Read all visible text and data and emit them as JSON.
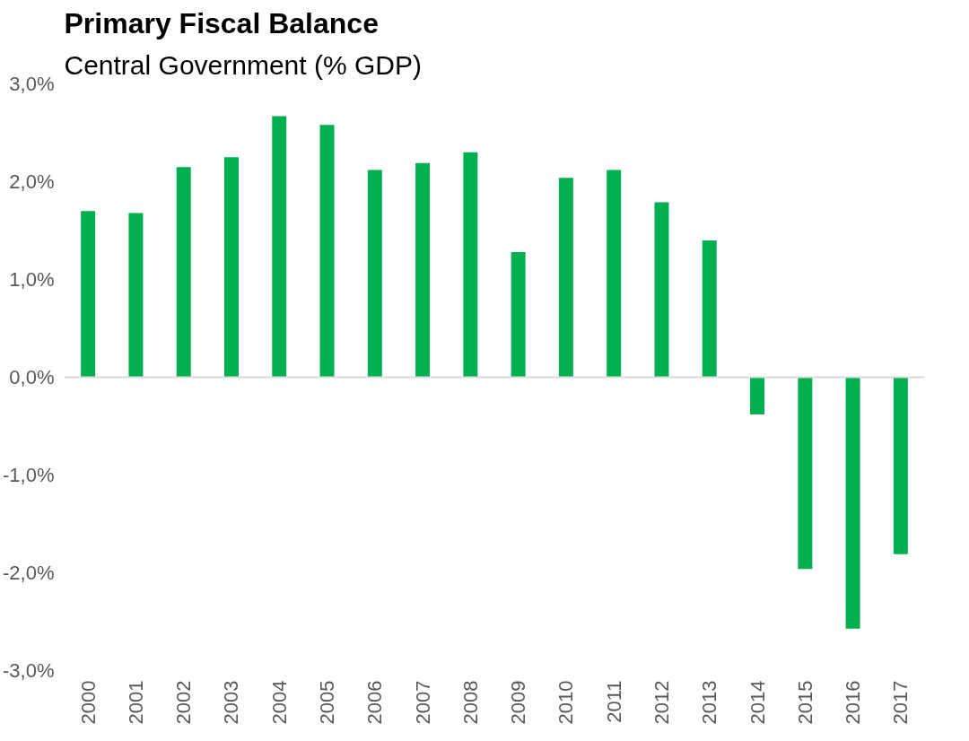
{
  "chart_data": {
    "type": "bar",
    "title": "Primary Fiscal Balance",
    "subtitle": "Central Government (% GDP)",
    "categories": [
      "2000",
      "2001",
      "2002",
      "2003",
      "2004",
      "2005",
      "2006",
      "2007",
      "2008",
      "2009",
      "2010",
      "2011",
      "2012",
      "2013",
      "2014",
      "2015",
      "2016",
      "2017"
    ],
    "values": [
      1.7,
      1.68,
      2.15,
      2.25,
      2.67,
      2.58,
      2.12,
      2.19,
      2.3,
      1.28,
      2.04,
      2.12,
      1.79,
      1.4,
      -0.38,
      -1.96,
      -2.57,
      -1.81
    ],
    "color": "#00b050",
    "ylim": [
      -3,
      3
    ],
    "yticks": [
      {
        "value": -3,
        "label": "-3,0%"
      },
      {
        "value": -2,
        "label": "-2,0%"
      },
      {
        "value": -1,
        "label": "-1,0%"
      },
      {
        "value": 0,
        "label": "0,0%"
      },
      {
        "value": 1,
        "label": "1,0%"
      },
      {
        "value": 2,
        "label": "2,0%"
      },
      {
        "value": 3,
        "label": "3,0%"
      }
    ],
    "ref_lines": [
      {
        "axis": "y",
        "value": 0,
        "color": "#d9d9d9"
      }
    ],
    "grid": false
  }
}
